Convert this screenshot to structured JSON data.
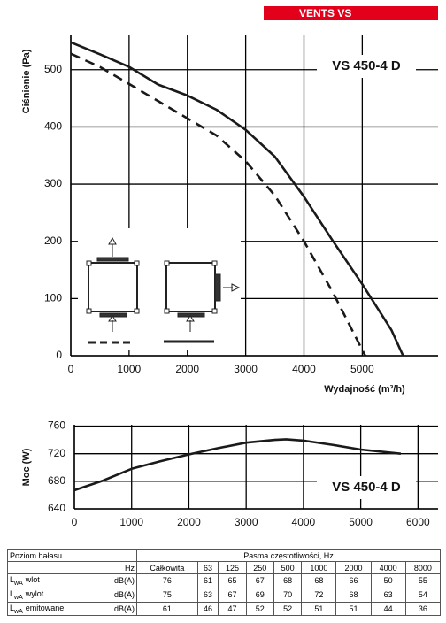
{
  "header": {
    "brand": "VENTS VS"
  },
  "chart_data": [
    {
      "type": "line",
      "annotation": "VS 450-4 D",
      "ylabel": "Ciśnienie (Pa)",
      "xlabel": "Wydajność (m³/h)",
      "xlim": [
        0,
        6300
      ],
      "xticks": [
        0,
        1000,
        2000,
        3000,
        4000,
        5000
      ],
      "ylim": [
        0,
        560
      ],
      "yticks": [
        0,
        100,
        200,
        300,
        400,
        500
      ],
      "grid": true,
      "series": [
        {
          "color": "#1a1a1a",
          "dash": false,
          "x": [
            0,
            500,
            1000,
            1500,
            2000,
            2500,
            3000,
            3500,
            4000,
            4500,
            5000,
            5500,
            5700
          ],
          "values": [
            548,
            527,
            505,
            474,
            455,
            430,
            395,
            348,
            278,
            200,
            125,
            45,
            0
          ]
        },
        {
          "color": "#1a1a1a",
          "dash": true,
          "x": [
            0,
            500,
            1000,
            1500,
            2000,
            2500,
            3000,
            3500,
            4000,
            4500,
            4800,
            5050
          ],
          "values": [
            528,
            505,
            475,
            445,
            415,
            385,
            340,
            280,
            200,
            110,
            50,
            0
          ]
        }
      ]
    },
    {
      "type": "line",
      "annotation": "VS 450-4 D",
      "ylabel": "Moc (W)",
      "xlim": [
        0,
        6350
      ],
      "xticks": [
        0,
        1000,
        2000,
        3000,
        4000,
        5000,
        6000
      ],
      "ylim": [
        640,
        762
      ],
      "yticks": [
        640,
        680,
        720,
        760
      ],
      "grid": true,
      "series": [
        {
          "color": "#1a1a1a",
          "dash": false,
          "x": [
            0,
            500,
            1000,
            1500,
            2000,
            2500,
            3000,
            3500,
            3700,
            4000,
            4500,
            5000,
            5700
          ],
          "values": [
            667,
            681,
            698,
            709,
            719,
            728,
            736,
            740,
            741,
            739,
            733,
            726,
            720
          ]
        }
      ]
    }
  ],
  "table": {
    "title": "Poziom hałasu",
    "bands_title": "Pasma częstotliwości, Hz",
    "unit_header": "Hz",
    "columns": [
      "Całkowita",
      63,
      125,
      250,
      500,
      1000,
      2000,
      4000,
      8000
    ],
    "rows": [
      {
        "symbol": "L",
        "subscript": "wA",
        "name": "wlot",
        "unit": "dB(A)",
        "values": [
          76,
          61,
          65,
          67,
          68,
          68,
          66,
          50,
          55
        ]
      },
      {
        "symbol": "L",
        "subscript": "wA",
        "name": "wylot",
        "unit": "dB(A)",
        "values": [
          75,
          63,
          67,
          69,
          70,
          72,
          68,
          63,
          54
        ]
      },
      {
        "symbol": "L",
        "subscript": "wA",
        "name": "emitowane",
        "unit": "dB(A)",
        "values": [
          61,
          46,
          47,
          52,
          52,
          51,
          51,
          44,
          36
        ]
      }
    ]
  }
}
